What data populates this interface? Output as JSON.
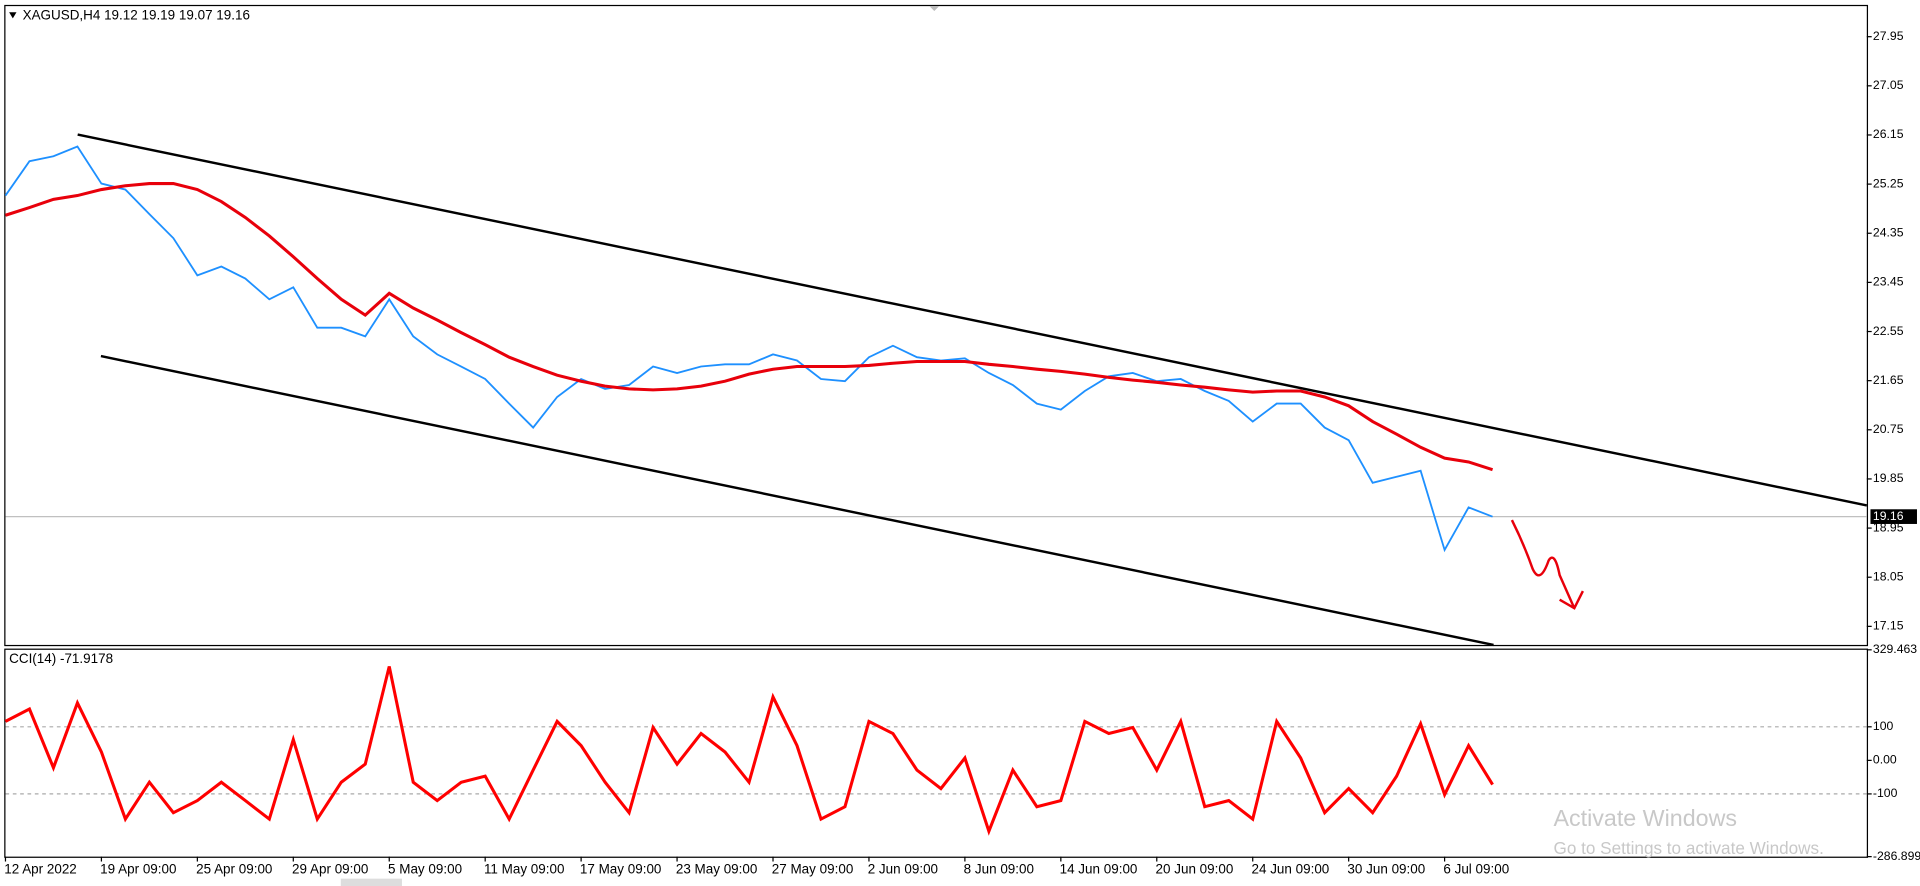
{
  "chart_data": [
    {
      "type": "line",
      "header": "XAGUSD,H4  19.12 19.19 19.07 19.16",
      "categories": [
        "12 Apr 2022",
        null,
        null,
        null,
        "19 Apr 09:00",
        null,
        null,
        null,
        "25 Apr 09:00",
        null,
        null,
        null,
        "29 Apr 09:00",
        null,
        null,
        null,
        "5 May 09:00",
        null,
        null,
        null,
        "11 May 09:00",
        null,
        null,
        null,
        "17 May 09:00",
        null,
        null,
        null,
        "23 May 09:00",
        null,
        null,
        null,
        "27 May 09:00",
        null,
        null,
        null,
        "2 Jun 09:00",
        null,
        null,
        null,
        "8 Jun 09:00",
        null,
        null,
        null,
        "14 Jun 09:00",
        null,
        null,
        null,
        "20 Jun 09:00",
        null,
        null,
        null,
        "24 Jun 09:00",
        null,
        null,
        null,
        "30 Jun 09:00",
        null,
        null,
        null,
        "6 Jul 09:00",
        null,
        null
      ],
      "series": [
        {
          "color": "#1e90ff",
          "values": [
            25.04,
            25.67,
            25.76,
            25.94,
            25.26,
            25.15,
            24.7,
            24.26,
            23.58,
            23.74,
            23.52,
            23.14,
            23.36,
            22.62,
            22.62,
            22.46,
            23.14,
            22.46,
            22.13,
            21.91,
            21.68,
            21.23,
            20.79,
            21.35,
            21.68,
            21.5,
            21.57,
            21.91,
            21.79,
            21.91,
            21.95,
            21.95,
            22.13,
            22.02,
            21.68,
            21.64,
            22.08,
            22.29,
            22.08,
            22.02,
            22.06,
            21.79,
            21.57,
            21.23,
            21.12,
            21.46,
            21.73,
            21.79,
            21.64,
            21.68,
            21.46,
            21.28,
            20.9,
            21.23,
            21.23,
            20.79,
            20.56,
            19.78,
            19.89,
            20.0,
            18.55,
            19.33,
            19.16
          ]
        },
        {
          "color": "#e8000b",
          "values": [
            24.68,
            24.82,
            24.97,
            25.04,
            25.15,
            25.22,
            25.26,
            25.26,
            25.15,
            24.93,
            24.64,
            24.3,
            23.92,
            23.52,
            23.14,
            22.85,
            23.25,
            22.98,
            22.76,
            22.53,
            22.31,
            22.08,
            21.91,
            21.75,
            21.64,
            21.55,
            21.5,
            21.48,
            21.5,
            21.55,
            21.64,
            21.77,
            21.86,
            21.91,
            21.91,
            21.91,
            21.93,
            21.97,
            22.0,
            22.0,
            22.0,
            21.95,
            21.91,
            21.86,
            21.82,
            21.77,
            21.71,
            21.66,
            21.62,
            21.57,
            21.53,
            21.48,
            21.44,
            21.46,
            21.46,
            21.35,
            21.19,
            20.9,
            20.67,
            20.43,
            20.23,
            20.16,
            20.02
          ]
        }
      ],
      "last_price": 19.16,
      "ylim": [
        16.81,
        28.51
      ],
      "yticks": [
        27.95,
        27.05,
        26.15,
        25.25,
        24.35,
        23.45,
        22.55,
        21.65,
        20.75,
        19.85,
        18.95,
        18.05,
        17.15
      ]
    },
    {
      "type": "line",
      "header": "CCI(14) -71.9178",
      "series": [
        {
          "color": "#ff0000",
          "values": [
            116,
            153,
            -22,
            171,
            25,
            -175,
            -65,
            -156,
            -120,
            -65,
            -120,
            -175,
            62,
            -175,
            -65,
            -11,
            280,
            -65,
            -120,
            -65,
            -47,
            -175,
            -29,
            116,
            44,
            -65,
            -156,
            98,
            -11,
            80,
            25,
            -65,
            189,
            44,
            -175,
            -138,
            116,
            80,
            -29,
            -84,
            7,
            -211,
            -29,
            -138,
            -120,
            116,
            80,
            98,
            -29,
            116,
            -138,
            -120,
            -175,
            116,
            7,
            -156,
            -84,
            -156,
            -47,
            109,
            -102,
            44,
            -72
          ]
        }
      ],
      "ylim": [
        -286.899,
        329.463
      ],
      "yticks": [
        329.463,
        100,
        {
          "value": 0,
          "label": "0.00"
        },
        -100,
        -286.899
      ],
      "level_lines": [
        100,
        -100
      ]
    }
  ],
  "watermark": {
    "title": "Activate Windows",
    "subtitle": "Go to Settings to activate Windows."
  }
}
